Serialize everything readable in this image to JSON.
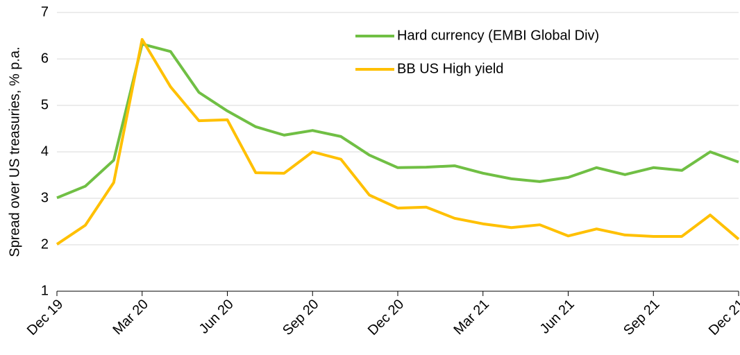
{
  "chart_data": {
    "type": "line",
    "y_label": "Spread over US treasuries, % p.a.",
    "categories": [
      "Dec 19",
      null,
      null,
      "Mar 20",
      null,
      null,
      "Jun 20",
      null,
      null,
      "Sep 20",
      null,
      null,
      "Dec 20",
      null,
      null,
      "Mar 21",
      null,
      null,
      "Jun 21",
      null,
      null,
      "Sep 21",
      null,
      null,
      "Dec 21"
    ],
    "series": [
      {
        "name": "Hard currency (EMBI Global Div)",
        "color": "#70bf44",
        "values": [
          3.01,
          3.26,
          3.82,
          6.32,
          6.16,
          5.28,
          4.88,
          4.54,
          4.36,
          4.46,
          4.33,
          3.93,
          3.66,
          3.67,
          3.7,
          3.54,
          3.42,
          3.36,
          3.45,
          3.66,
          3.51,
          3.66,
          3.6,
          4.0,
          3.78
        ]
      },
      {
        "name": "BB US High yield",
        "color": "#ffc000",
        "values": [
          2.01,
          2.42,
          3.34,
          6.42,
          5.4,
          4.67,
          4.69,
          3.55,
          3.54,
          4.0,
          3.84,
          3.07,
          2.79,
          2.81,
          2.57,
          2.45,
          2.37,
          2.43,
          2.19,
          2.34,
          2.21,
          2.18,
          2.18,
          2.64,
          2.12
        ]
      }
    ],
    "ylim": [
      1,
      7
    ],
    "yticks": [
      1,
      2,
      3,
      4,
      5,
      6,
      7
    ],
    "grid": true,
    "legend": "top-right"
  }
}
